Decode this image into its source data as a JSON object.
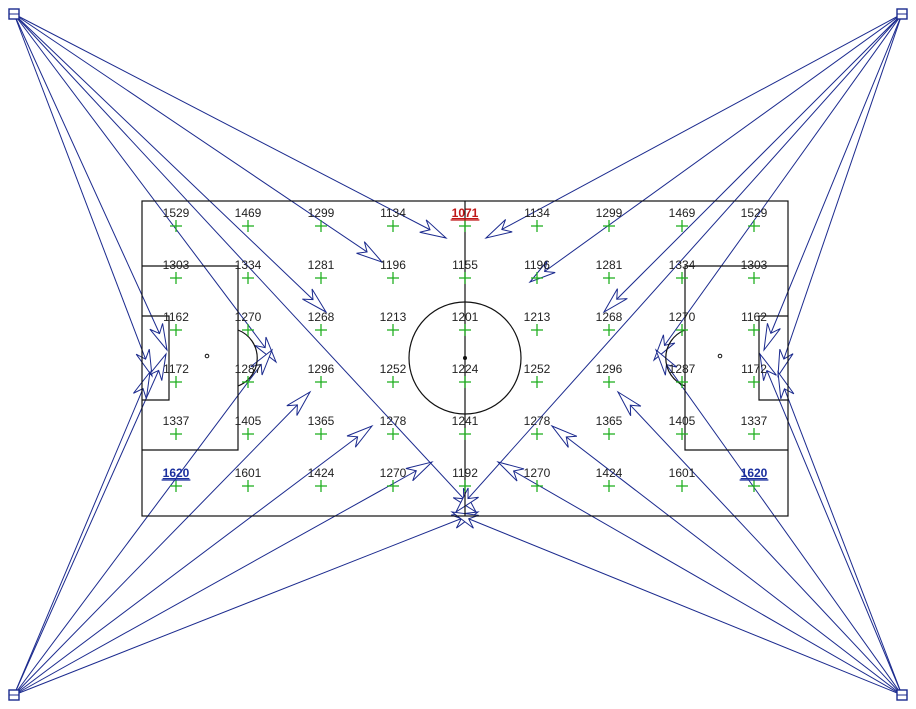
{
  "colors": {
    "ray": "#1b2a8e",
    "grid_marker": "#22b022",
    "field_lines": "#111111",
    "min_value": "#c01818",
    "max_value": "#1a2f9e"
  },
  "illuminance_grid": {
    "rows": [
      [
        "1529",
        "1469",
        "1299",
        "1134",
        "1071",
        "1134",
        "1299",
        "1469",
        "1529"
      ],
      [
        "1303",
        "1334",
        "1281",
        "1196",
        "1155",
        "1196",
        "1281",
        "1334",
        "1303"
      ],
      [
        "1162",
        "1270",
        "1268",
        "1213",
        "1201",
        "1213",
        "1268",
        "1270",
        "1162"
      ],
      [
        "1172",
        "1287",
        "1296",
        "1252",
        "1224",
        "1252",
        "1296",
        "1287",
        "1172"
      ],
      [
        "1337",
        "1405",
        "1365",
        "1278",
        "1241",
        "1278",
        "1365",
        "1405",
        "1337"
      ],
      [
        "1620",
        "1601",
        "1424",
        "1270",
        "1192",
        "1270",
        "1424",
        "1601",
        "1620"
      ]
    ],
    "min_value": "1071",
    "max_value": "1620"
  },
  "masts": [
    {
      "name": "top-left",
      "icon": "floodlight-mast-icon"
    },
    {
      "name": "top-right",
      "icon": "floodlight-mast-icon"
    },
    {
      "name": "bottom-left",
      "icon": "floodlight-mast-icon"
    },
    {
      "name": "bottom-right",
      "icon": "floodlight-mast-icon"
    }
  ]
}
